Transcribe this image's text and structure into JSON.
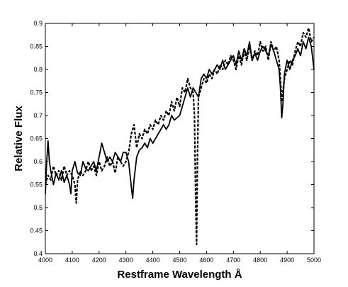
{
  "chart_data": {
    "type": "line",
    "title": "",
    "xlabel": "Restframe Wavelength Å",
    "ylabel": "Relative Flux",
    "xlim": [
      4000,
      5000
    ],
    "ylim": [
      0.4,
      0.9
    ],
    "xticks": [
      4000,
      4100,
      4200,
      4300,
      4400,
      4500,
      4600,
      4700,
      4800,
      4900,
      5000
    ],
    "yticks": [
      0.4,
      0.45,
      0.5,
      0.55,
      0.6,
      0.65,
      0.7,
      0.75,
      0.8,
      0.85,
      0.9
    ],
    "grid": false,
    "legend": "none",
    "series": [
      {
        "style": "solid",
        "color": "#000000",
        "x": [
          4000,
          4005,
          4010,
          4015,
          4020,
          4030,
          4040,
          4050,
          4060,
          4070,
          4080,
          4090,
          4095,
          4100,
          4110,
          4120,
          4130,
          4140,
          4150,
          4160,
          4170,
          4180,
          4190,
          4200,
          4210,
          4220,
          4230,
          4240,
          4250,
          4260,
          4270,
          4280,
          4290,
          4300,
          4310,
          4320,
          4325,
          4330,
          4340,
          4350,
          4360,
          4370,
          4380,
          4390,
          4400,
          4410,
          4420,
          4430,
          4440,
          4450,
          4460,
          4470,
          4480,
          4490,
          4500,
          4510,
          4520,
          4530,
          4540,
          4550,
          4560,
          4570,
          4580,
          4590,
          4600,
          4610,
          4620,
          4630,
          4640,
          4650,
          4660,
          4670,
          4680,
          4690,
          4700,
          4710,
          4720,
          4730,
          4740,
          4750,
          4760,
          4770,
          4780,
          4790,
          4800,
          4810,
          4820,
          4830,
          4840,
          4850,
          4860,
          4870,
          4875,
          4880,
          4885,
          4890,
          4900,
          4910,
          4920,
          4930,
          4940,
          4950,
          4960,
          4970,
          4980,
          4990,
          5000
        ],
        "y": [
          0.53,
          0.6,
          0.645,
          0.6,
          0.58,
          0.55,
          0.575,
          0.56,
          0.58,
          0.555,
          0.57,
          0.55,
          0.53,
          0.58,
          0.6,
          0.575,
          0.57,
          0.6,
          0.585,
          0.58,
          0.59,
          0.6,
          0.58,
          0.61,
          0.64,
          0.62,
          0.6,
          0.61,
          0.6,
          0.62,
          0.61,
          0.6,
          0.62,
          0.62,
          0.6,
          0.545,
          0.52,
          0.56,
          0.61,
          0.625,
          0.63,
          0.64,
          0.63,
          0.65,
          0.64,
          0.65,
          0.66,
          0.67,
          0.68,
          0.67,
          0.68,
          0.7,
          0.69,
          0.695,
          0.7,
          0.72,
          0.74,
          0.76,
          0.74,
          0.76,
          0.75,
          0.74,
          0.78,
          0.79,
          0.78,
          0.8,
          0.79,
          0.8,
          0.81,
          0.8,
          0.82,
          0.8,
          0.81,
          0.82,
          0.83,
          0.81,
          0.84,
          0.82,
          0.845,
          0.83,
          0.86,
          0.82,
          0.835,
          0.82,
          0.84,
          0.85,
          0.84,
          0.83,
          0.855,
          0.84,
          0.82,
          0.8,
          0.76,
          0.695,
          0.73,
          0.79,
          0.82,
          0.8,
          0.82,
          0.83,
          0.845,
          0.83,
          0.86,
          0.845,
          0.87,
          0.85,
          0.8
        ]
      },
      {
        "style": "dashed",
        "color": "#000000",
        "x": [
          4000,
          4010,
          4020,
          4030,
          4040,
          4050,
          4060,
          4070,
          4080,
          4090,
          4100,
          4110,
          4115,
          4120,
          4130,
          4140,
          4150,
          4160,
          4170,
          4180,
          4190,
          4200,
          4210,
          4220,
          4230,
          4240,
          4250,
          4260,
          4270,
          4280,
          4290,
          4300,
          4310,
          4320,
          4330,
          4340,
          4350,
          4360,
          4370,
          4380,
          4390,
          4400,
          4410,
          4420,
          4430,
          4440,
          4450,
          4460,
          4470,
          4480,
          4490,
          4500,
          4510,
          4520,
          4530,
          4540,
          4550,
          4555,
          4560,
          4563,
          4566,
          4570,
          4580,
          4590,
          4600,
          4610,
          4620,
          4630,
          4640,
          4650,
          4660,
          4670,
          4680,
          4690,
          4700,
          4710,
          4720,
          4730,
          4740,
          4750,
          4760,
          4770,
          4780,
          4790,
          4800,
          4810,
          4820,
          4830,
          4840,
          4850,
          4860,
          4870,
          4875,
          4880,
          4890,
          4900,
          4910,
          4920,
          4930,
          4940,
          4950,
          4960,
          4970,
          4980,
          4990,
          5000
        ],
        "y": [
          0.55,
          0.57,
          0.56,
          0.59,
          0.57,
          0.58,
          0.56,
          0.59,
          0.57,
          0.58,
          0.57,
          0.55,
          0.51,
          0.56,
          0.58,
          0.57,
          0.58,
          0.6,
          0.58,
          0.59,
          0.57,
          0.6,
          0.58,
          0.59,
          0.61,
          0.59,
          0.6,
          0.575,
          0.61,
          0.6,
          0.59,
          0.6,
          0.62,
          0.66,
          0.68,
          0.63,
          0.66,
          0.65,
          0.67,
          0.66,
          0.68,
          0.67,
          0.69,
          0.68,
          0.7,
          0.69,
          0.71,
          0.7,
          0.73,
          0.71,
          0.74,
          0.72,
          0.76,
          0.75,
          0.78,
          0.76,
          0.75,
          0.7,
          0.5,
          0.42,
          0.6,
          0.74,
          0.76,
          0.78,
          0.77,
          0.79,
          0.78,
          0.8,
          0.79,
          0.81,
          0.8,
          0.82,
          0.81,
          0.83,
          0.82,
          0.8,
          0.83,
          0.81,
          0.84,
          0.82,
          0.85,
          0.82,
          0.84,
          0.83,
          0.86,
          0.84,
          0.85,
          0.82,
          0.86,
          0.84,
          0.85,
          0.82,
          0.78,
          0.73,
          0.78,
          0.8,
          0.82,
          0.81,
          0.84,
          0.86,
          0.85,
          0.88,
          0.87,
          0.89,
          0.86,
          0.87
        ]
      }
    ]
  }
}
